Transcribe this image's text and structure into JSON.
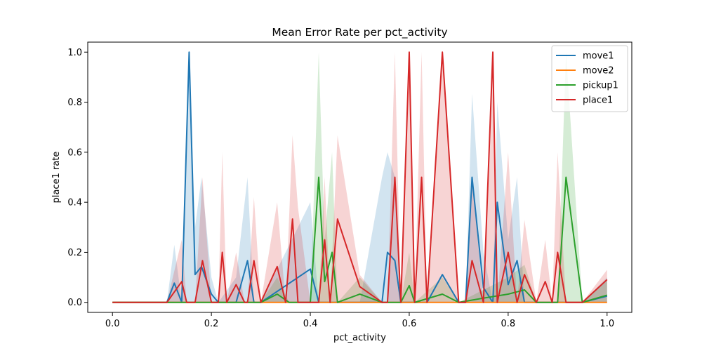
{
  "chart_data": {
    "type": "line",
    "title": "Mean Error Rate per pct_activity",
    "xlabel": "pct_activity",
    "ylabel": "place1 rate",
    "xlim": [
      -0.05,
      1.05
    ],
    "ylim": [
      -0.04,
      1.04
    ],
    "xticks": [
      0.0,
      0.2,
      0.4,
      0.6,
      0.8,
      1.0
    ],
    "xtick_labels": [
      "0.0",
      "0.2",
      "0.4",
      "0.6",
      "0.8",
      "1.0"
    ],
    "yticks": [
      0.0,
      0.2,
      0.4,
      0.6,
      0.8,
      1.0
    ],
    "ytick_labels": [
      "0.0",
      "0.2",
      "0.4",
      "0.6",
      "0.8",
      "1.0"
    ],
    "grid": false,
    "legend": {
      "position": "top-right"
    },
    "series": [
      {
        "name": "move1",
        "color": "#1f77b4",
        "x": [
          0.0,
          0.11,
          0.125,
          0.14,
          0.155,
          0.167,
          0.18,
          0.2,
          0.214,
          0.25,
          0.273,
          0.286,
          0.3,
          0.4,
          0.417,
          0.5,
          0.545,
          0.556,
          0.571,
          0.583,
          0.6,
          0.611,
          0.636,
          0.667,
          0.7,
          0.714,
          0.727,
          0.75,
          0.769,
          0.778,
          0.8,
          0.818,
          0.833,
          0.857,
          0.889,
          0.9,
          0.917,
          0.95,
          1.0
        ],
        "y": [
          0.0,
          0.0,
          0.077,
          0.0,
          1.0,
          0.111,
          0.143,
          0.033,
          0.0,
          0.0,
          0.167,
          0.0,
          0.0,
          0.133,
          0.0,
          0.0,
          0.0,
          0.2,
          0.167,
          0.0,
          0.0,
          0.0,
          0.0,
          0.111,
          0.0,
          0.0,
          0.5,
          0.059,
          0.0,
          0.4,
          0.071,
          0.167,
          0.0,
          0.0,
          0.0,
          0.0,
          0.0,
          0.0,
          0.025
        ],
        "ci_upper": [
          0.0,
          0.0,
          0.23,
          0.0,
          1.0,
          0.3,
          0.5,
          0.1,
          0.0,
          0.1,
          0.5,
          0.0,
          0.0,
          0.4,
          0.0,
          0.0,
          0.5,
          0.6,
          0.5,
          0.0,
          0.0,
          0.0,
          0.0,
          0.0,
          0.0,
          0.0,
          0.833,
          0.2,
          0.0,
          0.8,
          0.25,
          0.5,
          0.0,
          0.0,
          0.0,
          0.0,
          0.0,
          0.0,
          0.1
        ]
      },
      {
        "name": "move2",
        "color": "#ff7f0e",
        "x": [
          0.0,
          1.0
        ],
        "y": [
          0.0,
          0.0
        ],
        "ci_upper": [
          0.0,
          0.0
        ]
      },
      {
        "name": "pickup1",
        "color": "#2ca02c",
        "x": [
          0.0,
          0.25,
          0.273,
          0.286,
          0.3,
          0.333,
          0.357,
          0.4,
          0.417,
          0.429,
          0.444,
          0.455,
          0.5,
          0.545,
          0.583,
          0.6,
          0.611,
          0.667,
          0.7,
          0.75,
          0.8,
          0.833,
          0.857,
          0.9,
          0.917,
          0.95,
          1.0
        ],
        "y": [
          0.0,
          0.0,
          0.0,
          0.0,
          0.0,
          0.033,
          0.0,
          0.0,
          0.5,
          0.083,
          0.2,
          0.0,
          0.033,
          0.0,
          0.0,
          0.067,
          0.0,
          0.033,
          0.0,
          0.017,
          0.033,
          0.05,
          0.0,
          0.0,
          0.5,
          0.0,
          0.029
        ],
        "ci_upper": [
          0.0,
          0.0,
          0.0,
          0.0,
          0.0,
          0.1,
          0.0,
          0.0,
          1.0,
          0.25,
          0.6,
          0.0,
          0.1,
          0.0,
          0.0,
          0.2,
          0.0,
          0.1,
          0.0,
          0.05,
          0.1,
          0.15,
          0.0,
          0.0,
          1.0,
          0.0,
          0.087
        ]
      },
      {
        "name": "place1",
        "color": "#d62728",
        "x": [
          0.0,
          0.11,
          0.14,
          0.15,
          0.167,
          0.182,
          0.2,
          0.214,
          0.222,
          0.231,
          0.25,
          0.267,
          0.273,
          0.286,
          0.3,
          0.333,
          0.35,
          0.364,
          0.375,
          0.4,
          0.417,
          0.429,
          0.44,
          0.455,
          0.5,
          0.545,
          0.556,
          0.571,
          0.583,
          0.6,
          0.611,
          0.625,
          0.636,
          0.667,
          0.7,
          0.714,
          0.727,
          0.75,
          0.769,
          0.778,
          0.8,
          0.818,
          0.833,
          0.857,
          0.875,
          0.889,
          0.9,
          0.917,
          0.95,
          1.0
        ],
        "y": [
          0.0,
          0.0,
          0.083,
          0.0,
          0.0,
          0.167,
          0.0,
          0.0,
          0.2,
          0.0,
          0.071,
          0.0,
          0.0,
          0.167,
          0.0,
          0.143,
          0.0,
          0.333,
          0.0,
          0.0,
          0.0,
          0.25,
          0.0,
          0.333,
          0.063,
          0.0,
          0.0,
          0.5,
          0.0,
          1.0,
          0.0,
          0.5,
          0.0,
          1.0,
          0.0,
          0.0,
          0.167,
          0.0,
          1.0,
          0.0,
          0.2,
          0.0,
          0.111,
          0.0,
          0.083,
          0.0,
          0.2,
          0.0,
          0.0,
          0.091
        ],
        "ci_upper": [
          0.0,
          0.0,
          0.25,
          0.0,
          0.0,
          0.5,
          0.0,
          0.0,
          0.6,
          0.0,
          0.2,
          0.0,
          0.0,
          0.42,
          0.0,
          0.4,
          0.0,
          0.667,
          0.38,
          0.0,
          0.0,
          0.5,
          0.0,
          0.667,
          0.11,
          0.0,
          0.0,
          1.0,
          0.0,
          1.0,
          0.0,
          1.0,
          0.0,
          1.0,
          0.0,
          0.0,
          0.5,
          0.0,
          1.0,
          0.0,
          0.6,
          0.0,
          0.33,
          0.0,
          0.25,
          0.0,
          0.6,
          0.0,
          0.0,
          0.13
        ]
      }
    ]
  }
}
